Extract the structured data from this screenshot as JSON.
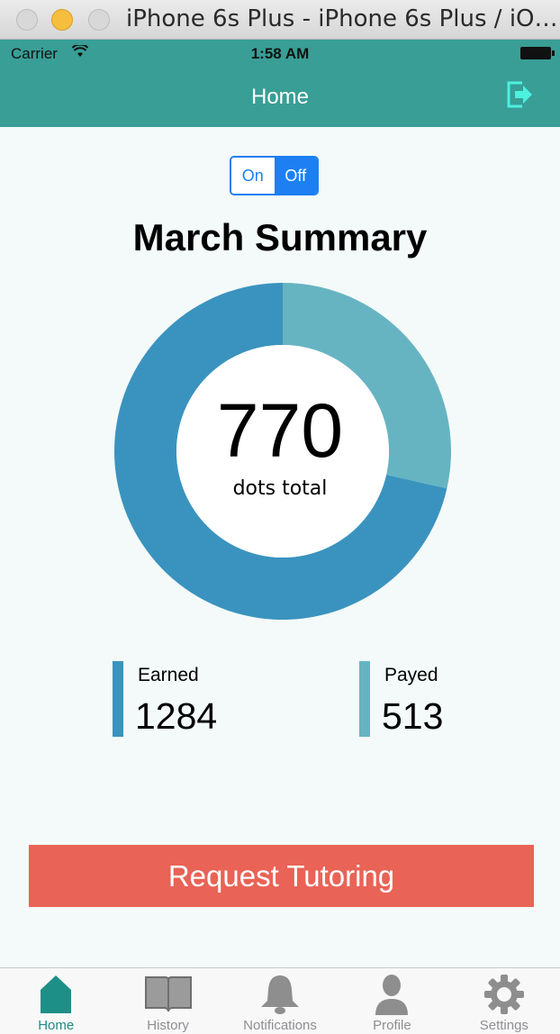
{
  "window": {
    "title": "iPhone 6s Plus - iPhone 6s Plus / iO…"
  },
  "status_bar": {
    "carrier": "Carrier",
    "time": "1:58 AM"
  },
  "nav": {
    "title": "Home",
    "logout_icon": "logout-icon"
  },
  "toggle": {
    "options": [
      "On",
      "Off"
    ],
    "selected": "Off"
  },
  "summary": {
    "title": "March Summary",
    "total": "770",
    "total_label": "dots total",
    "earned_label": "Earned",
    "earned_value": "1284",
    "payed_label": "Payed",
    "payed_value": "513"
  },
  "chart_data": {
    "type": "pie",
    "categories": [
      "Earned",
      "Payed"
    ],
    "values": [
      1284,
      513
    ],
    "colors": [
      "#3a93be",
      "#66b4c2"
    ]
  },
  "actions": {
    "request_label": "Request Tutoring"
  },
  "tabbar": {
    "items": [
      {
        "label": "Home",
        "icon": "home-icon"
      },
      {
        "label": "History",
        "icon": "book-icon"
      },
      {
        "label": "Notifications",
        "icon": "bell-icon"
      },
      {
        "label": "Profile",
        "icon": "person-icon"
      },
      {
        "label": "Settings",
        "icon": "gear-icon"
      }
    ],
    "selected": "Home"
  },
  "colors": {
    "nav": "#399e96",
    "accent": "#1d7ff2",
    "button": "#e96356",
    "active_tab": "#228a84"
  }
}
